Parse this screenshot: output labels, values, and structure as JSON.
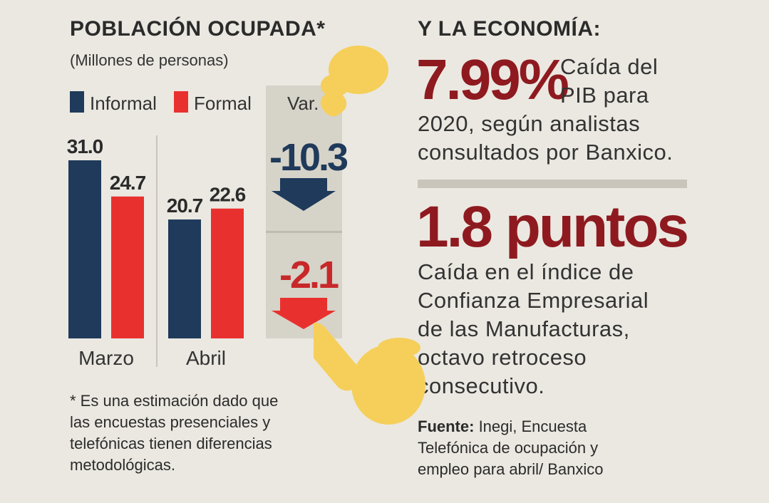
{
  "left": {
    "title": "POBLACIÓN OCUPADA*",
    "subtitle": "(Millones de personas)",
    "legend": [
      {
        "label": "Informal",
        "color": "#1f3a5a"
      },
      {
        "label": "Formal",
        "color": "#e8312f"
      }
    ],
    "var_header": "Var.",
    "var_informal": "-10.3",
    "var_formal": "-2.1",
    "note": [
      "* Es una estimación dado que",
      "las encuestas presenciales y",
      "telefónicas tienen diferencias",
      "metodológicas."
    ]
  },
  "chart_data": {
    "type": "bar",
    "categories": [
      "Marzo",
      "Abril"
    ],
    "series": [
      {
        "name": "Informal",
        "values": [
          31.0,
          20.7
        ],
        "color": "#1f3a5a"
      },
      {
        "name": "Formal",
        "values": [
          24.7,
          22.6
        ],
        "color": "#e8312f"
      }
    ],
    "data_labels": [
      [
        "31.0",
        "24.7"
      ],
      [
        "20.7",
        "22.6"
      ]
    ],
    "title": "POBLACIÓN OCUPADA*",
    "subtitle": "(Millones de personas)",
    "ylim": [
      0,
      31.0
    ],
    "grid": false,
    "legend_position": "top-left",
    "variation": {
      "header": "Var.",
      "Informal": -10.3,
      "Formal": -2.1
    }
  },
  "right": {
    "title": "Y LA ECONOMÍA:",
    "stat1": "7.99%",
    "stat1_text": [
      "Caída del",
      "PIB para",
      "2020, según analistas",
      "consultados por Banxico."
    ],
    "stat2": "1.8 puntos",
    "stat2_text": [
      "Caída en el índice de",
      "Confianza Empresarial",
      "de las Manufacturas,",
      "octavo retroceso",
      "consecutivo."
    ],
    "source_label": "Fuente:",
    "source_lines": [
      " Inegi, Encuesta",
      "Telefónica de ocupación y",
      "empleo para abril/ Banxico"
    ]
  },
  "colors": {
    "informal": "#1f3a5a",
    "formal": "#e8312f",
    "stat": "#8e1a20",
    "pointer": "#f5c842"
  }
}
